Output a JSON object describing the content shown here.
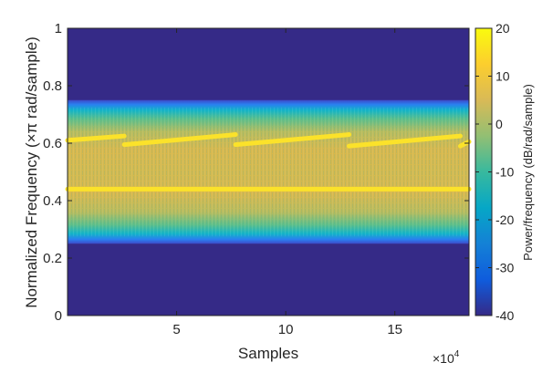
{
  "chart_data": {
    "type": "heatmap",
    "xlabel": "Samples",
    "ylabel": "Normalized Frequency  (×π rad/sample)",
    "x_multiplier_label": "×10",
    "x_multiplier_exponent": "4",
    "xlim": [
      0,
      18.4
    ],
    "ylim": [
      0,
      1
    ],
    "x_ticks": [
      {
        "value": 5,
        "label": "5"
      },
      {
        "value": 10,
        "label": "10"
      },
      {
        "value": 15,
        "label": "15"
      }
    ],
    "y_ticks": [
      {
        "value": 0,
        "label": "0"
      },
      {
        "value": 0.2,
        "label": "0.2"
      },
      {
        "value": 0.4,
        "label": "0.4"
      },
      {
        "value": 0.6,
        "label": "0.6"
      },
      {
        "value": 0.8,
        "label": "0.8"
      },
      {
        "value": 1,
        "label": "1"
      }
    ],
    "colorbar": {
      "label": "Power/frequency (dB/rad/sample)",
      "range": [
        -40,
        20
      ],
      "ticks": [
        {
          "value": 20,
          "label": "20"
        },
        {
          "value": 10,
          "label": "10"
        },
        {
          "value": 0,
          "label": "0"
        },
        {
          "value": -10,
          "label": "-10"
        },
        {
          "value": -20,
          "label": "-20"
        },
        {
          "value": -30,
          "label": "-30"
        },
        {
          "value": -40,
          "label": "-40"
        }
      ],
      "colormap": "parula"
    },
    "noise_band": {
      "low": 0.25,
      "high": 0.75,
      "level_db": 0
    },
    "background_level_db": -40,
    "series": [
      {
        "kind": "constant_tone",
        "level_db": 20,
        "segments": [
          {
            "x0": 0,
            "x1": 18.4,
            "y0": 0.44,
            "y1": 0.44
          }
        ]
      },
      {
        "kind": "sawtooth_chirp",
        "level_db": 20,
        "segments": [
          {
            "x0": 0,
            "x1": 2.6,
            "y0": 0.61,
            "y1": 0.625
          },
          {
            "x0": 2.6,
            "x1": 7.7,
            "y0": 0.595,
            "y1": 0.63
          },
          {
            "x0": 7.7,
            "x1": 12.9,
            "y0": 0.595,
            "y1": 0.63
          },
          {
            "x0": 12.9,
            "x1": 18.0,
            "y0": 0.59,
            "y1": 0.625
          },
          {
            "x0": 18.0,
            "x1": 18.4,
            "y0": 0.59,
            "y1": 0.605
          }
        ]
      }
    ]
  }
}
